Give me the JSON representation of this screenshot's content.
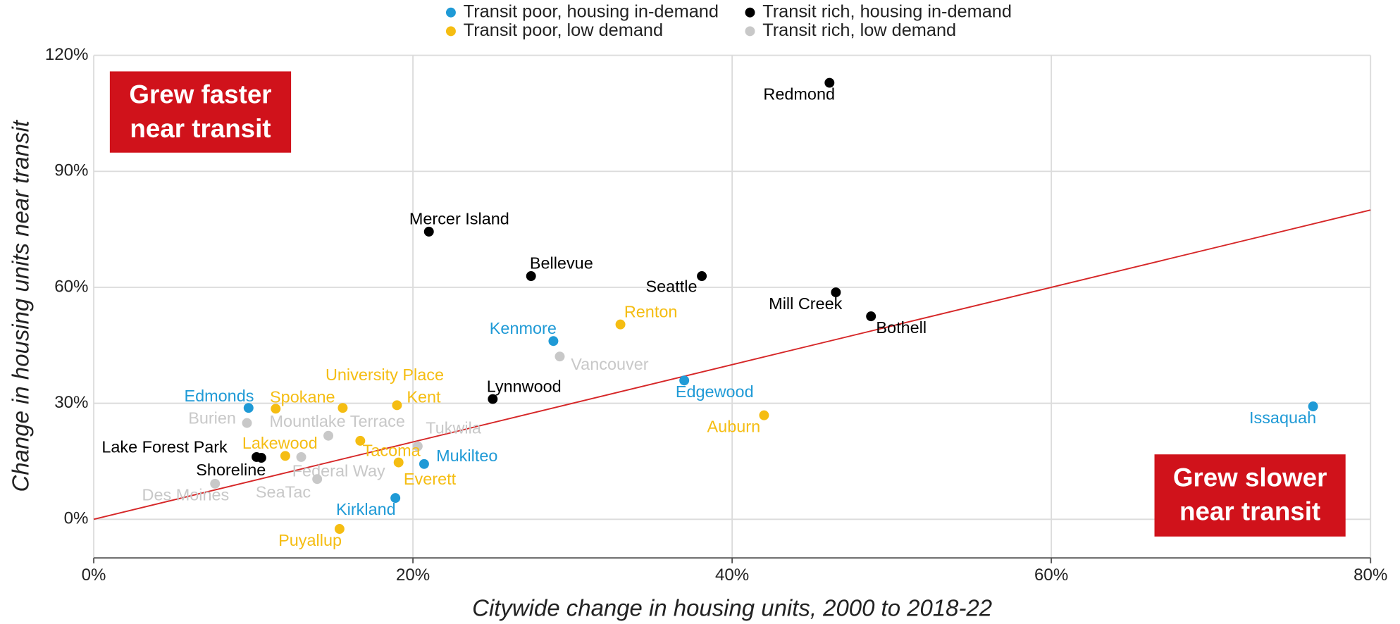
{
  "chart_data": {
    "type": "scatter",
    "x_label": "Citywide change in housing units, 2000 to 2018-22",
    "y_label": "Change in housing units near transit",
    "xlim": [
      0,
      80
    ],
    "ylim": [
      -10,
      120
    ],
    "xticks": [
      {
        "value": 0,
        "label": "0%"
      },
      {
        "value": 20,
        "label": "20%"
      },
      {
        "value": 40,
        "label": "40%"
      },
      {
        "value": 60,
        "label": "60%"
      },
      {
        "value": 80,
        "label": "80%"
      }
    ],
    "yticks": [
      {
        "value": 0,
        "label": "0%"
      },
      {
        "value": 30,
        "label": "30%"
      },
      {
        "value": 60,
        "label": "60%"
      },
      {
        "value": 90,
        "label": "90%"
      },
      {
        "value": 120,
        "label": "120%"
      }
    ],
    "grid": true,
    "legend": "top",
    "trend_line": {
      "x": [
        0,
        80
      ],
      "values": [
        0,
        80
      ],
      "color": "#d62728"
    },
    "annotations": [
      {
        "text": [
          "Grew faster",
          "near transit"
        ],
        "color": "#d0121b"
      },
      {
        "text": [
          "Grew slower",
          "near transit"
        ],
        "color": "#d0121b"
      }
    ],
    "series": [
      {
        "name": "Transit poor, housing in-demand",
        "color": "#1f9ad6",
        "labels": [
          "Edmonds",
          "Kenmore",
          "Edgewood",
          "Mukilteo",
          "Kirkland",
          "Issaquah"
        ],
        "x": [
          9.7,
          28.8,
          37.0,
          20.7,
          18.9,
          76.4
        ],
        "values": [
          28.8,
          46.1,
          35.9,
          14.3,
          5.5,
          29.2
        ]
      },
      {
        "name": "Transit rich, housing in-demand",
        "color": "#000000",
        "labels": [
          "Redmond",
          "Mercer Island",
          "Bellevue",
          "Seattle",
          "Mill Creek",
          "Bothell",
          "Lynnwood",
          "Lake Forest Park",
          "Shoreline"
        ],
        "x": [
          46.1,
          21.0,
          27.4,
          38.1,
          46.5,
          48.7,
          25.0,
          10.2,
          10.5
        ],
        "values": [
          112.9,
          74.4,
          62.9,
          62.9,
          58.7,
          52.5,
          31.1,
          16.1,
          15.9
        ]
      },
      {
        "name": "Transit poor, low demand",
        "color": "#f5bd12",
        "labels": [
          "Spokane",
          "University Place",
          "Kent",
          "Renton",
          "Lakewood",
          "Tacoma",
          "Everett",
          "Auburn",
          "Puyallup"
        ],
        "x": [
          11.4,
          15.6,
          19.0,
          33.0,
          12.0,
          16.7,
          19.1,
          42.0,
          15.4
        ],
        "values": [
          28.6,
          28.8,
          29.5,
          50.4,
          16.4,
          20.3,
          14.7,
          26.9,
          -2.5
        ]
      },
      {
        "name": "Transit rich, low demand",
        "color": "#c8c8c8",
        "labels": [
          "Burien",
          "Mountlake Terrace",
          "Tukwila",
          "Federal Way",
          "SeaTac",
          "Vancouver",
          "Des Moines"
        ],
        "x": [
          9.6,
          14.7,
          20.3,
          13.0,
          14.0,
          29.2,
          7.6
        ],
        "values": [
          24.9,
          21.6,
          18.9,
          16.1,
          10.4,
          42.1,
          9.2
        ]
      }
    ]
  }
}
